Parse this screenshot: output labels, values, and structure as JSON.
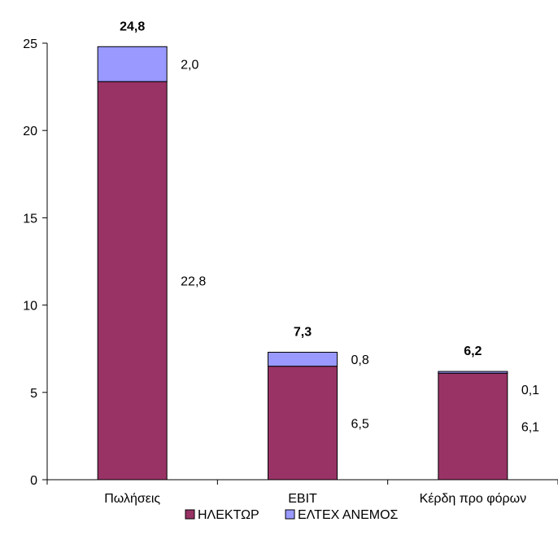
{
  "chart_data": {
    "type": "bar",
    "stacked": true,
    "categories": [
      "Πωλήσεις",
      "EBIT",
      "Κέρδη προ φόρων"
    ],
    "series": [
      {
        "name": "ΗΛΕΚΤΩΡ",
        "values": [
          22.8,
          6.5,
          6.1
        ],
        "labels": [
          "22,8",
          "6,5",
          "6,1"
        ],
        "color": "#993366"
      },
      {
        "name": "ΕΛΤΕΧ ΑΝΕΜΟΣ",
        "values": [
          2.0,
          0.8,
          0.1
        ],
        "labels": [
          "2,0",
          "0,8",
          "0,1"
        ],
        "color": "#9999ff"
      }
    ],
    "totals": [
      24.8,
      7.3,
      6.2
    ],
    "total_labels": [
      "24,8",
      "7,3",
      "6,2"
    ],
    "ylim": [
      0,
      25
    ],
    "yticks": [
      0,
      5,
      10,
      15,
      20,
      25
    ],
    "grid": false,
    "legend_position": "bottom"
  }
}
